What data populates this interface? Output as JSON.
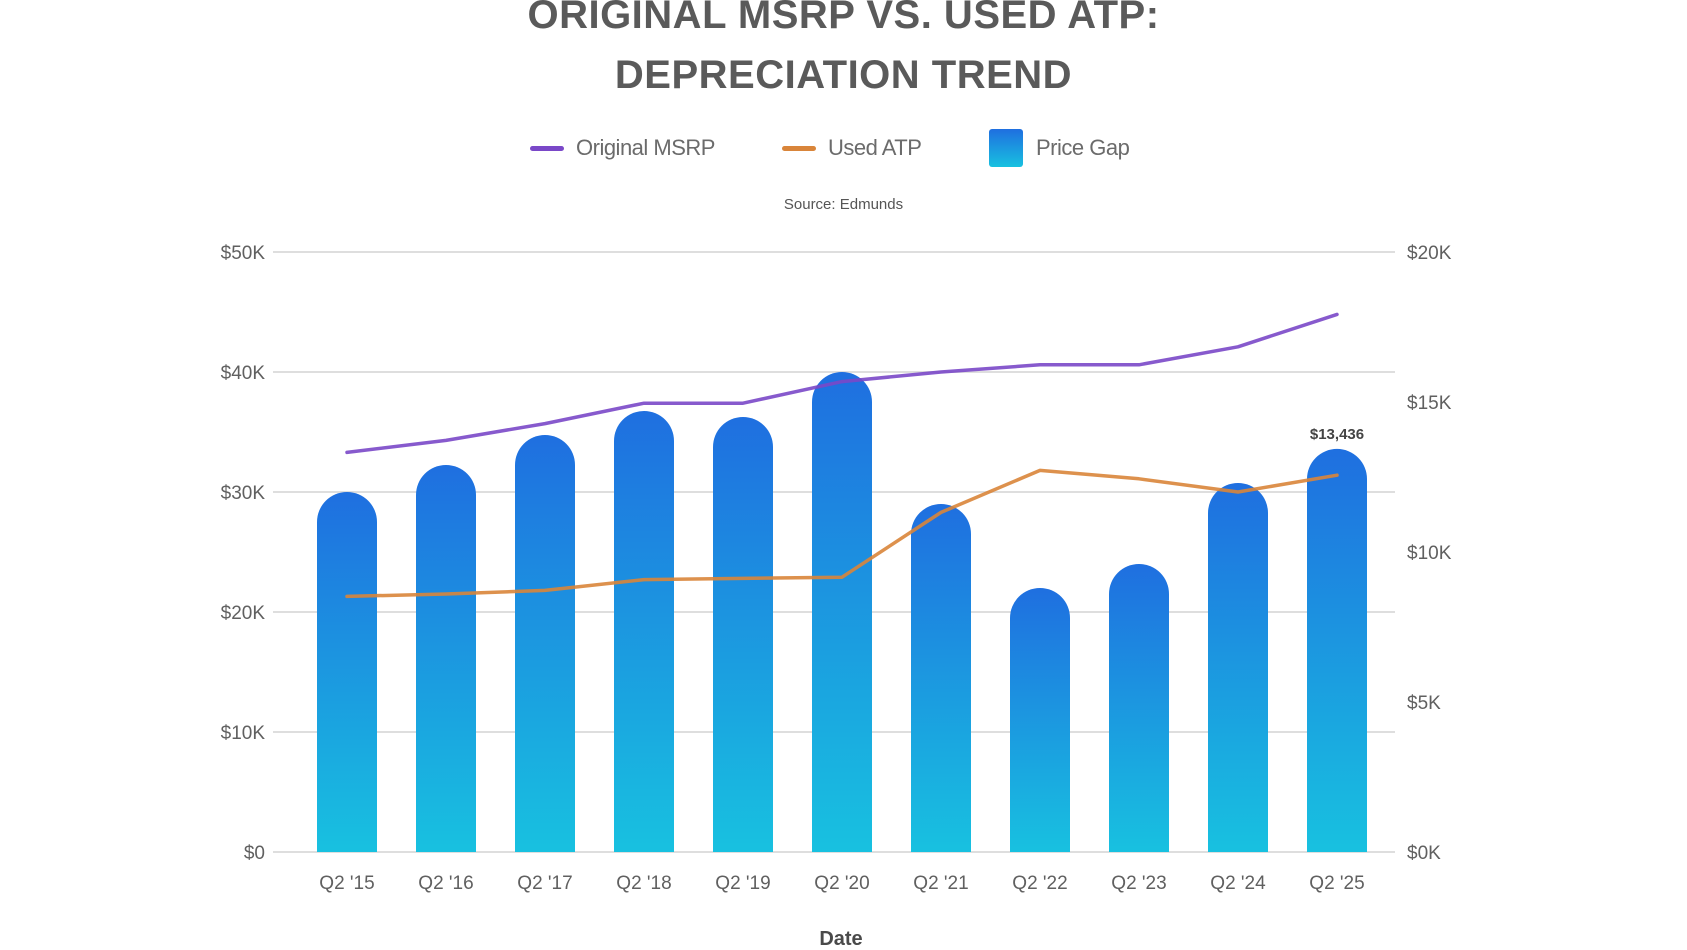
{
  "colors": {
    "msrp": "#7a48c8",
    "atp": "#d9853a",
    "bar_top": "#1f6fe0",
    "bar_bottom": "#18c1e0",
    "grid": "#dedede",
    "text": "#606060"
  },
  "chart_data": {
    "type": "bar",
    "title": "ORIGINAL MSRP VS. USED ATP: DEPRECIATION TREND",
    "title_lines": [
      "ORIGINAL MSRP VS. USED ATP:",
      "DEPRECIATION TREND"
    ],
    "subtitle": "Source: Edmunds",
    "xlabel": "Date",
    "ylabel": "",
    "y2label": "",
    "categories": [
      "Q2 '15",
      "Q2 '16",
      "Q2 '17",
      "Q2 '18",
      "Q2 '19",
      "Q2 '20",
      "Q2 '21",
      "Q2 '22",
      "Q2 '23",
      "Q2 '24",
      "Q2 '25"
    ],
    "series": [
      {
        "name": "Original MSRP",
        "type": "line",
        "axis": "left",
        "values": [
          33300,
          34300,
          35700,
          37400,
          37400,
          39200,
          40000,
          40600,
          40600,
          42100,
          44800
        ]
      },
      {
        "name": "Used ATP",
        "type": "line",
        "axis": "left",
        "values": [
          21300,
          21500,
          21800,
          22700,
          22800,
          22900,
          28300,
          31800,
          31100,
          30000,
          31400
        ]
      },
      {
        "name": "Price Gap",
        "type": "bar",
        "axis": "right",
        "values": [
          12000,
          12900,
          13900,
          14700,
          14500,
          16000,
          11600,
          8800,
          9600,
          12300,
          13436
        ]
      }
    ],
    "ylim": [
      0,
      50000
    ],
    "y2lim": [
      0,
      20000
    ],
    "yticks": [
      0,
      10000,
      20000,
      30000,
      40000,
      50000
    ],
    "ytick_labels": [
      "$0",
      "$10K",
      "$20K",
      "$30K",
      "$40K",
      "$50K"
    ],
    "y2ticks": [
      0,
      5000,
      10000,
      15000,
      20000
    ],
    "y2tick_labels": [
      "$0K",
      "$5K",
      "$10K",
      "$15K",
      "$20K"
    ],
    "annotations": [
      {
        "category": "Q2 '25",
        "series": "Price Gap",
        "text": "$13,436"
      }
    ],
    "legend": {
      "position": "top-center",
      "entries": [
        {
          "label": "Original MSRP",
          "marker": "line"
        },
        {
          "label": "Used ATP",
          "marker": "line"
        },
        {
          "label": "Price Gap",
          "marker": "box"
        }
      ]
    },
    "grid": true
  }
}
